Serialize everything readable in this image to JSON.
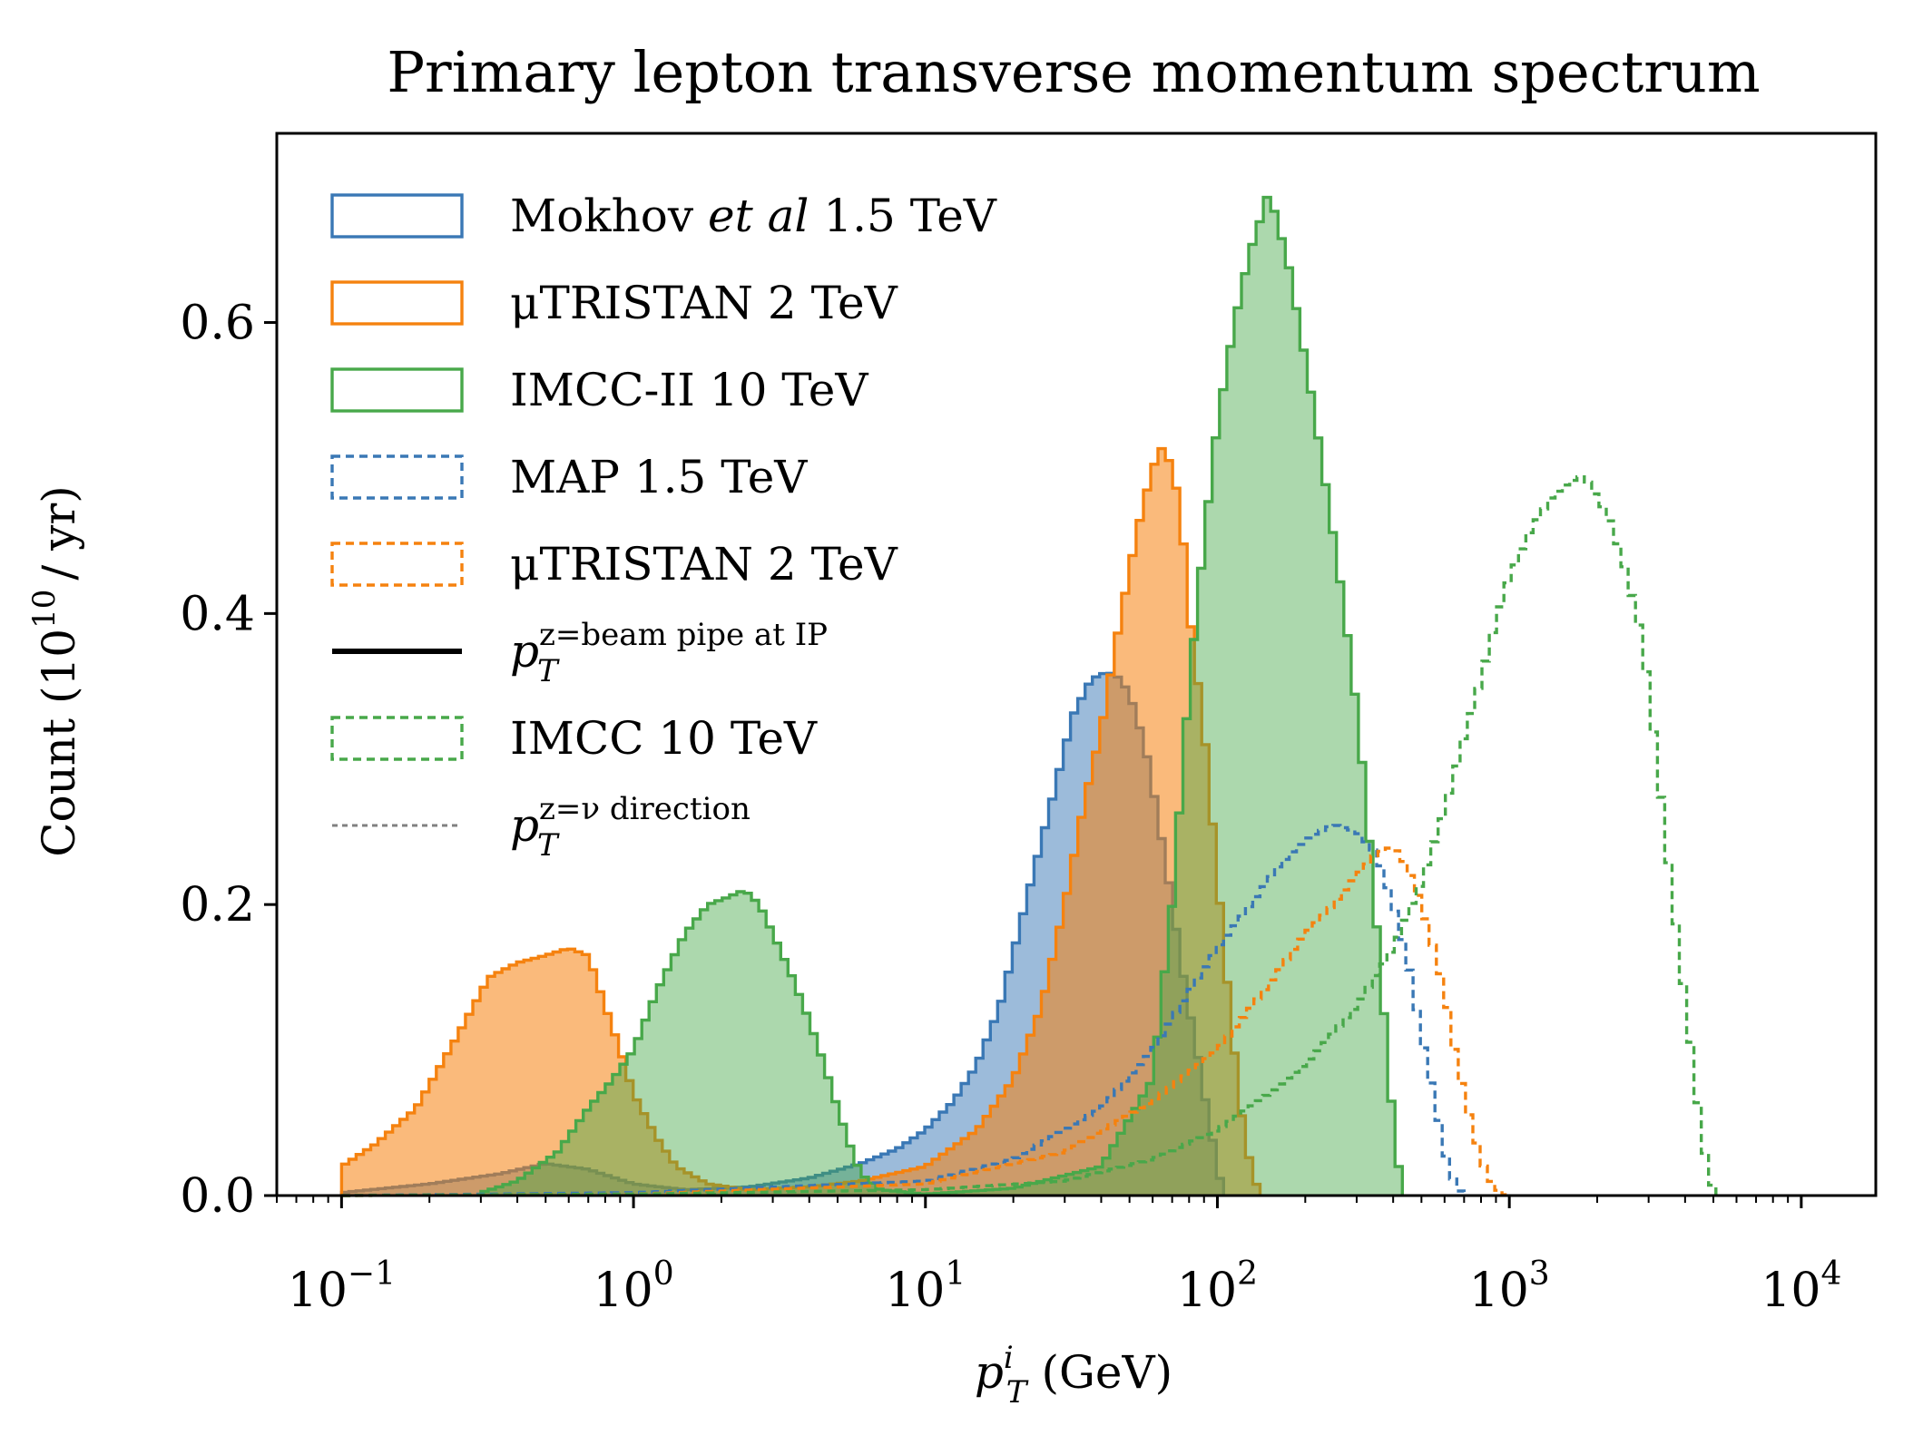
{
  "chart_data": {
    "type": "histogram",
    "title": "Primary lepton transverse momentum spectrum",
    "xlabel": {
      "text": "p",
      "sup": "i",
      "sub": "T",
      "unit": "(GeV)"
    },
    "ylabel": {
      "pre": "Count (10",
      "sup": "10",
      "post": "/ yr)"
    },
    "xscale": "log",
    "xlim": [
      0.06,
      18000
    ],
    "ylim": [
      0.0,
      0.73
    ],
    "grid": false,
    "legend_position": "top-left",
    "x_ticks": [
      {
        "value": 0.1,
        "base": "10",
        "exp": "−1"
      },
      {
        "value": 1,
        "base": "10",
        "exp": "0"
      },
      {
        "value": 10,
        "base": "10",
        "exp": "1"
      },
      {
        "value": 100,
        "base": "10",
        "exp": "2"
      },
      {
        "value": 1000,
        "base": "10",
        "exp": "3"
      },
      {
        "value": 10000,
        "base": "10",
        "exp": "4"
      }
    ],
    "y_ticks": [
      {
        "value": 0.0,
        "label": "0.0"
      },
      {
        "value": 0.2,
        "label": "0.2"
      },
      {
        "value": 0.4,
        "label": "0.4"
      },
      {
        "value": 0.6,
        "label": "0.6"
      }
    ],
    "legend": [
      {
        "key": "mokhov_bp",
        "style": "filled-outline",
        "color": "#3a78b5",
        "parts": [
          {
            "t": "Mokhov "
          },
          {
            "t": "et al",
            "italic": true
          },
          {
            "t": " 1.5 TeV"
          }
        ]
      },
      {
        "key": "mutristan_bp",
        "style": "filled-outline",
        "color": "#f5820f",
        "parts": [
          {
            "t": "μTRISTAN 2 TeV"
          }
        ]
      },
      {
        "key": "imcc_bp",
        "style": "filled-outline",
        "color": "#48a84a",
        "parts": [
          {
            "t": "IMCC-II 10 TeV"
          }
        ]
      },
      {
        "key": "map_nu",
        "style": "dashed-outline",
        "color": "#3a78b5",
        "parts": [
          {
            "t": "MAP 1.5 TeV"
          }
        ]
      },
      {
        "key": "mutristan_nu",
        "style": "dashed-outline",
        "color": "#f5820f",
        "parts": [
          {
            "t": "μTRISTAN 2 TeV"
          }
        ]
      },
      {
        "key": "frame_bp",
        "style": "solid-line",
        "color": "#000000",
        "parts": [
          {
            "t": "p"
          }
        ],
        "sup": "z=beam pipe at IP",
        "sub": "T"
      },
      {
        "key": "imcc_nu",
        "style": "dashed-outline",
        "color": "#48a84a",
        "parts": [
          {
            "t": "IMCC 10 TeV"
          }
        ]
      },
      {
        "key": "frame_nu",
        "style": "dotted-line",
        "color": "#808080",
        "parts": [
          {
            "t": "p"
          }
        ],
        "sup": "z=ν direction",
        "sub": "T"
      }
    ],
    "series": [
      {
        "name": "Mokhov et al 1.5 TeV",
        "frame": "beam pipe",
        "style": "filled",
        "color": "#3a78b5",
        "fill_opacity": 0.5,
        "x": [
          0.1,
          0.2,
          0.35,
          0.5,
          0.7,
          1.0,
          1.5,
          2.5,
          4.0,
          6.0,
          8.0,
          10.0,
          12.5,
          15.0,
          18.0,
          22.0,
          27.0,
          32.0,
          37.0,
          42.0,
          47.0,
          52.0,
          57.0,
          62.0,
          67.0,
          72.0,
          78.0,
          85.0,
          92.0,
          100.0,
          105.0
        ],
        "y": [
          0.002,
          0.008,
          0.015,
          0.022,
          0.018,
          0.008,
          0.004,
          0.006,
          0.012,
          0.022,
          0.032,
          0.045,
          0.065,
          0.09,
          0.13,
          0.2,
          0.27,
          0.33,
          0.355,
          0.36,
          0.355,
          0.335,
          0.305,
          0.265,
          0.225,
          0.185,
          0.14,
          0.1,
          0.06,
          0.02,
          0.0
        ]
      },
      {
        "name": "μTRISTAN 2 TeV",
        "frame": "beam pipe",
        "style": "filled",
        "color": "#f5820f",
        "fill_opacity": 0.55,
        "x": [
          0.1,
          0.13,
          0.18,
          0.25,
          0.32,
          0.4,
          0.5,
          0.6,
          0.7,
          0.8,
          0.9,
          1.0,
          1.2,
          1.4,
          1.8,
          2.5,
          4.0,
          6.0,
          10.0,
          15.0,
          20.0,
          25.0,
          30.0,
          35.0,
          40.0,
          45.0,
          50.0,
          55.0,
          60.0,
          65.0,
          70.0,
          75.0,
          80.0,
          90.0,
          100.0,
          110.0,
          120.0,
          130.0,
          140.0
        ],
        "y": [
          0.02,
          0.035,
          0.06,
          0.11,
          0.15,
          0.16,
          0.165,
          0.17,
          0.165,
          0.13,
          0.1,
          0.07,
          0.04,
          0.02,
          0.008,
          0.004,
          0.006,
          0.01,
          0.02,
          0.045,
          0.08,
          0.13,
          0.2,
          0.27,
          0.32,
          0.38,
          0.43,
          0.47,
          0.5,
          0.515,
          0.5,
          0.47,
          0.4,
          0.32,
          0.22,
          0.13,
          0.06,
          0.02,
          0.0
        ]
      },
      {
        "name": "IMCC-II 10 TeV",
        "frame": "beam pipe",
        "style": "filled",
        "color": "#48a84a",
        "fill_opacity": 0.45,
        "x": [
          0.3,
          0.4,
          0.55,
          0.7,
          0.85,
          1.0,
          1.2,
          1.5,
          1.8,
          2.1,
          2.4,
          2.7,
          3.0,
          3.5,
          4.0,
          4.5,
          5.0,
          5.5,
          6.0,
          7.0,
          10.0,
          20.0,
          40.0,
          60.0,
          70.0,
          80.0,
          90.0,
          100.0,
          110.0,
          120.0,
          130.0,
          140.0,
          150.0,
          160.0,
          175.0,
          190.0,
          210.0,
          230.0,
          260.0,
          290.0,
          320.0,
          360.0,
          400.0,
          430.0
        ],
        "y": [
          0.002,
          0.01,
          0.03,
          0.06,
          0.08,
          0.1,
          0.14,
          0.18,
          0.2,
          0.205,
          0.21,
          0.2,
          0.18,
          0.15,
          0.12,
          0.09,
          0.06,
          0.035,
          0.015,
          0.004,
          0.001,
          0.005,
          0.02,
          0.08,
          0.2,
          0.35,
          0.45,
          0.53,
          0.58,
          0.62,
          0.65,
          0.67,
          0.69,
          0.67,
          0.64,
          0.6,
          0.55,
          0.5,
          0.43,
          0.36,
          0.28,
          0.16,
          0.05,
          0.0
        ]
      },
      {
        "name": "MAP 1.5 TeV",
        "frame": "ν direction",
        "style": "dashed",
        "color": "#3a78b5",
        "x": [
          0.1,
          1.0,
          10.0,
          20.0,
          40.0,
          60.0,
          80.0,
          100.0,
          130.0,
          160.0,
          200.0,
          250.0,
          300.0,
          350.0,
          400.0,
          450.0,
          500.0,
          550.0,
          600.0,
          650.0,
          700.0
        ],
        "y": [
          0.0,
          0.002,
          0.01,
          0.025,
          0.06,
          0.1,
          0.14,
          0.17,
          0.2,
          0.225,
          0.245,
          0.255,
          0.25,
          0.235,
          0.2,
          0.16,
          0.11,
          0.07,
          0.03,
          0.008,
          0.0
        ]
      },
      {
        "name": "μTRISTAN 2 TeV",
        "frame": "ν direction",
        "style": "dashed",
        "color": "#f5820f",
        "x": [
          0.1,
          1.0,
          10.0,
          30.0,
          60.0,
          100.0,
          150.0,
          200.0,
          250.0,
          300.0,
          350.0,
          400.0,
          450.0,
          500.0,
          550.0,
          600.0,
          650.0,
          700.0,
          750.0,
          800.0,
          850.0,
          900.0,
          950.0,
          1000.0
        ],
        "y": [
          0.0,
          0.001,
          0.008,
          0.03,
          0.065,
          0.1,
          0.145,
          0.18,
          0.2,
          0.22,
          0.235,
          0.24,
          0.225,
          0.2,
          0.17,
          0.14,
          0.1,
          0.07,
          0.045,
          0.025,
          0.012,
          0.005,
          0.001,
          0.0
        ]
      },
      {
        "name": "IMCC 10 TeV",
        "frame": "ν direction",
        "style": "dashed",
        "color": "#48a84a",
        "x": [
          0.1,
          1.0,
          10.0,
          30.0,
          60.0,
          100.0,
          150.0,
          200.0,
          300.0,
          400.0,
          500.0,
          600.0,
          700.0,
          800.0,
          900.0,
          1000.0,
          1200.0,
          1400.0,
          1600.0,
          1800.0,
          2000.0,
          2200.0,
          2500.0,
          2800.0,
          3000.0,
          3200.0,
          3500.0,
          3800.0,
          4200.0,
          4500.0,
          4800.0,
          5100.0
        ],
        "y": [
          0.0,
          0.001,
          0.004,
          0.01,
          0.025,
          0.045,
          0.07,
          0.09,
          0.13,
          0.17,
          0.215,
          0.265,
          0.315,
          0.355,
          0.395,
          0.425,
          0.46,
          0.48,
          0.49,
          0.495,
          0.48,
          0.465,
          0.43,
          0.39,
          0.35,
          0.3,
          0.23,
          0.17,
          0.1,
          0.05,
          0.015,
          0.0
        ]
      }
    ]
  }
}
